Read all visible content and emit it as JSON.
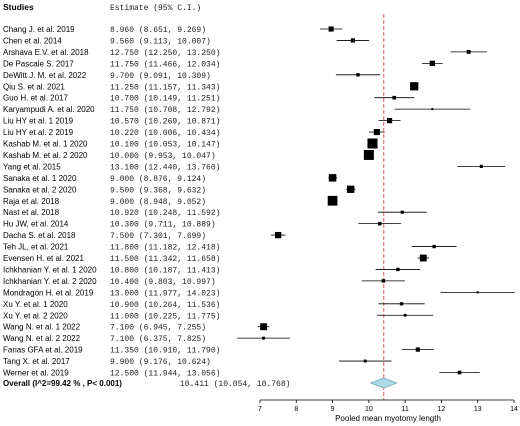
{
  "chart_data": {
    "type": "forest",
    "header": {
      "studies": "Studies",
      "estimate": "Estimate (95% C.I.)"
    },
    "studies": [
      {
        "name": "Chang J. et al. 2019",
        "estimate": 8.96,
        "lower": 8.651,
        "upper": 9.269,
        "text": "8.960 (8.651, 9.269)"
      },
      {
        "name": "Chen et al. 2014",
        "estimate": 9.56,
        "lower": 9.113,
        "upper": 10.007,
        "text": "9.560 (9.113, 10.007)"
      },
      {
        "name": "Arshava E.V. et al. 2018",
        "estimate": 12.75,
        "lower": 12.25,
        "upper": 13.25,
        "text": "12.750 (12.250, 13.250)"
      },
      {
        "name": "De Pascale S. 2017",
        "estimate": 11.75,
        "lower": 11.466,
        "upper": 12.034,
        "text": "11.750 (11.466, 12.034)"
      },
      {
        "name": "DeWitt J. M. et al. 2022",
        "estimate": 9.7,
        "lower": 9.091,
        "upper": 10.309,
        "text": "9.700 (9.091, 10.309)"
      },
      {
        "name": "Qiu S. et al. 2021",
        "estimate": 11.25,
        "lower": 11.157,
        "upper": 11.343,
        "text": "11.250 (11.157, 11.343)"
      },
      {
        "name": "Guo H. et al. 2017",
        "estimate": 10.7,
        "lower": 10.149,
        "upper": 11.251,
        "text": "10.700 (10.149, 11.251)"
      },
      {
        "name": "Karyampudi A. et al. 2020",
        "estimate": 11.75,
        "lower": 10.708,
        "upper": 12.792,
        "text": "11.750 (10.708, 12.792)"
      },
      {
        "name": "Liu HY et al. 1 2019",
        "estimate": 10.57,
        "lower": 10.269,
        "upper": 10.871,
        "text": "10.570 (10.269, 10.871)"
      },
      {
        "name": "Liu HY et al. 2 2019",
        "estimate": 10.22,
        "lower": 10.006,
        "upper": 10.434,
        "text": "10.220 (10.006, 10.434)"
      },
      {
        "name": "Kashab M. et al. 1 2020",
        "estimate": 10.1,
        "lower": 10.053,
        "upper": 10.147,
        "text": "10.100 (10.053, 10.147)"
      },
      {
        "name": "Kashab M. et al. 2 2020",
        "estimate": 10.0,
        "lower": 9.953,
        "upper": 10.047,
        "text": "10.000 (9.953, 10.047)"
      },
      {
        "name": "Yang et al. 2015",
        "estimate": 13.1,
        "lower": 12.44,
        "upper": 13.76,
        "text": "13.100 (12.440, 13.760)"
      },
      {
        "name": "Sanaka et al. 1 2020",
        "estimate": 9.0,
        "lower": 8.876,
        "upper": 9.124,
        "text": "9.000 (8.876, 9.124)"
      },
      {
        "name": "Sanaka et al. 2 2020",
        "estimate": 9.5,
        "lower": 9.368,
        "upper": 9.632,
        "text": "9.500 (9.368, 9.632)"
      },
      {
        "name": "Raja et al. 2018",
        "estimate": 9.0,
        "lower": 8.948,
        "upper": 9.052,
        "text": "9.000 (8.948, 9.052)"
      },
      {
        "name": "Nast et al. 2018",
        "estimate": 10.92,
        "lower": 10.248,
        "upper": 11.592,
        "text": "10.920 (10.248, 11.592)"
      },
      {
        "name": "Hu JW, et al. 2014",
        "estimate": 10.3,
        "lower": 9.711,
        "upper": 10.889,
        "text": "10.300 (9.711, 10.889)"
      },
      {
        "name": "Dacha S. et al. 2018",
        "estimate": 7.5,
        "lower": 7.301,
        "upper": 7.699,
        "text": "7.500 (7.301, 7.699)"
      },
      {
        "name": "Teh JL, et al. 2021",
        "estimate": 11.8,
        "lower": 11.182,
        "upper": 12.418,
        "text": "11.800 (11.182, 12.418)"
      },
      {
        "name": "Evensen H. et al. 2021",
        "estimate": 11.5,
        "lower": 11.342,
        "upper": 11.658,
        "text": "11.500 (11.342, 11.658)"
      },
      {
        "name": "Ichkhanian Y. et al. 1 2020",
        "estimate": 10.8,
        "lower": 10.187,
        "upper": 11.413,
        "text": "10.800 (10.187, 11.413)"
      },
      {
        "name": "Ichkhanian Y. et al. 2 2020",
        "estimate": 10.4,
        "lower": 9.803,
        "upper": 10.997,
        "text": "10.400 (9.803, 10.997)"
      },
      {
        "name": "Mondragón H. et al. 2019",
        "estimate": 13.0,
        "lower": 11.977,
        "upper": 14.023,
        "text": "13.000 (11.977, 14.023)"
      },
      {
        "name": "Xu Y. et al. 1 2020",
        "estimate": 10.9,
        "lower": 10.264,
        "upper": 11.536,
        "text": "10.900 (10.264, 11.536)"
      },
      {
        "name": "Xu Y. et al. 2 2020",
        "estimate": 11.0,
        "lower": 10.225,
        "upper": 11.775,
        "text": "11.000 (10.225, 11.775)"
      },
      {
        "name": "Wang N. et al. 1 2022",
        "estimate": 7.1,
        "lower": 6.945,
        "upper": 7.255,
        "text": "7.100 (6.945, 7.255)"
      },
      {
        "name": "Wang N. et al. 2 2022",
        "estimate": 7.1,
        "lower": 6.375,
        "upper": 7.825,
        "text": "7.100 (6.375, 7.825)"
      },
      {
        "name": "Farias GFA et al. 2019",
        "estimate": 11.35,
        "lower": 10.91,
        "upper": 11.79,
        "text": "11.350 (10.910, 11.790)"
      },
      {
        "name": "Tang X. et al. 2017",
        "estimate": 9.9,
        "lower": 9.176,
        "upper": 10.624,
        "text": "9.900 (9.176, 10.624)"
      },
      {
        "name": "Werner et al. 2019",
        "estimate": 12.5,
        "lower": 11.944,
        "upper": 13.056,
        "text": "12.500 (11.944, 13.056)"
      }
    ],
    "overall": {
      "label": "Overall (I^2=99.42 % , P< 0.001)",
      "estimate": 10.411,
      "lower": 10.054,
      "upper": 10.768,
      "text": "10.411 (10.054, 10.768)"
    },
    "xaxis": {
      "label": "Pooled mean myotomy length",
      "ticks": [
        "7",
        "8",
        "9",
        "10",
        "11",
        "12",
        "13",
        "14"
      ],
      "range": [
        7,
        14
      ]
    },
    "colors": {
      "point": "#000000",
      "overall_fill": "#add8e6",
      "overall_stroke": "#6fa3b5",
      "reference_line": "#e06060",
      "text": "#000000",
      "numbers": "#222222"
    }
  }
}
